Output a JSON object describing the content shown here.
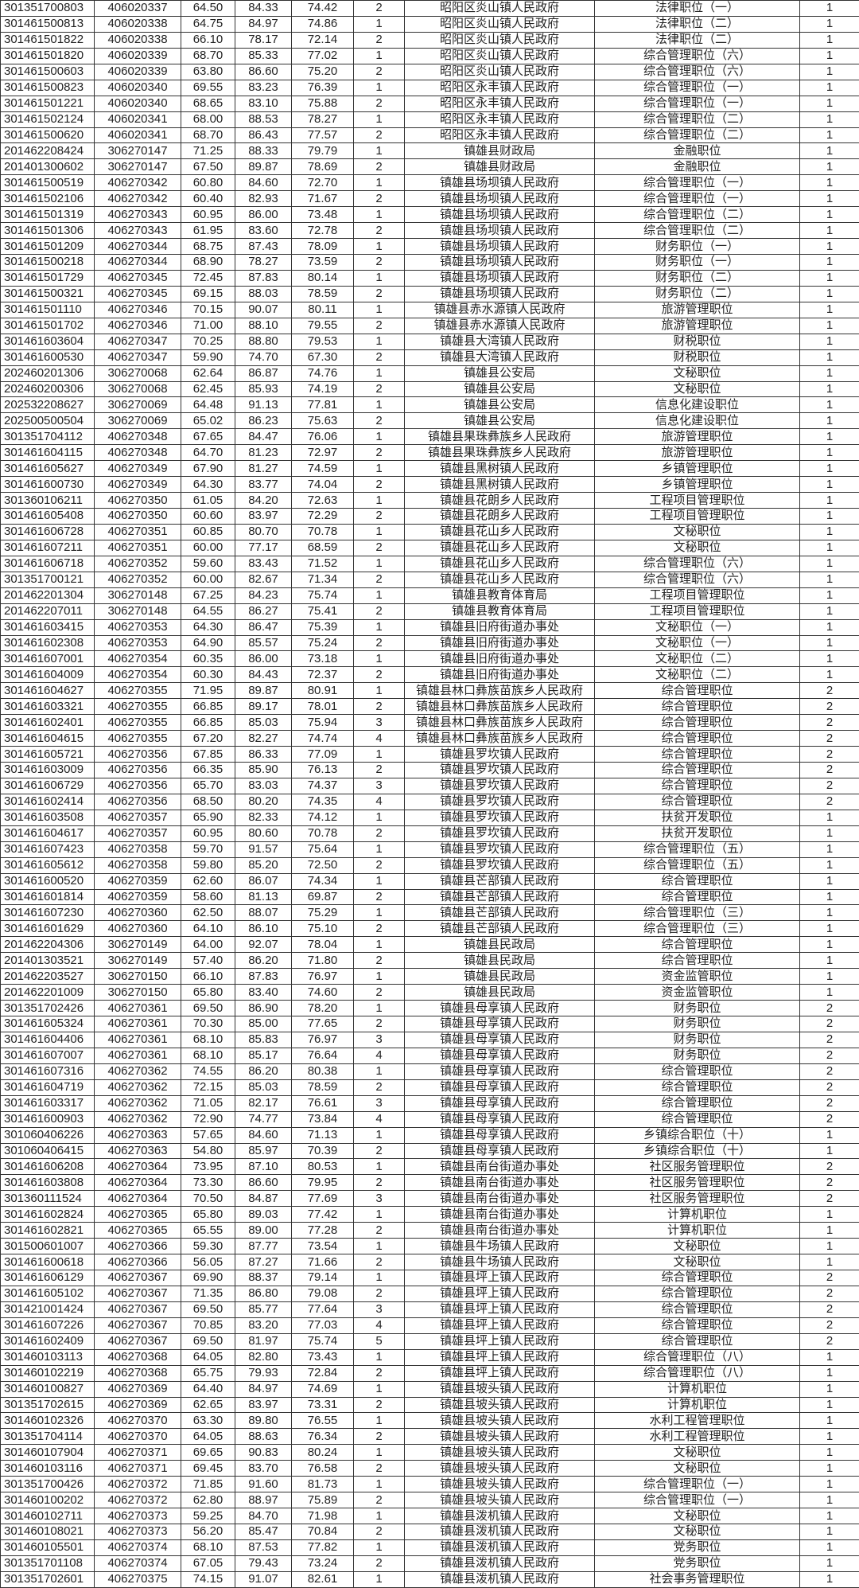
{
  "rows": [
    [
      "301351700803",
      "406020337",
      "64.50",
      "84.33",
      "74.42",
      "2",
      "昭阳区炎山镇人民政府",
      "法律职位（一）",
      "1"
    ],
    [
      "301461500813",
      "406020338",
      "64.75",
      "84.97",
      "74.86",
      "1",
      "昭阳区炎山镇人民政府",
      "法律职位（二）",
      "1"
    ],
    [
      "301461501822",
      "406020338",
      "66.10",
      "78.17",
      "72.14",
      "2",
      "昭阳区炎山镇人民政府",
      "法律职位（二）",
      "1"
    ],
    [
      "301461501820",
      "406020339",
      "68.70",
      "85.33",
      "77.02",
      "1",
      "昭阳区炎山镇人民政府",
      "综合管理职位（六）",
      "1"
    ],
    [
      "301461500603",
      "406020339",
      "63.80",
      "86.60",
      "75.20",
      "2",
      "昭阳区炎山镇人民政府",
      "综合管理职位（六）",
      "1"
    ],
    [
      "301461500823",
      "406020340",
      "69.55",
      "83.23",
      "76.39",
      "1",
      "昭阳区永丰镇人民政府",
      "综合管理职位（一）",
      "1"
    ],
    [
      "301461501221",
      "406020340",
      "68.65",
      "83.10",
      "75.88",
      "2",
      "昭阳区永丰镇人民政府",
      "综合管理职位（一）",
      "1"
    ],
    [
      "301461502124",
      "406020341",
      "68.00",
      "88.53",
      "78.27",
      "1",
      "昭阳区永丰镇人民政府",
      "综合管理职位（二）",
      "1"
    ],
    [
      "301461500620",
      "406020341",
      "68.70",
      "86.43",
      "77.57",
      "2",
      "昭阳区永丰镇人民政府",
      "综合管理职位（二）",
      "1"
    ],
    [
      "201462208424",
      "306270147",
      "71.25",
      "88.33",
      "79.79",
      "1",
      "镇雄县财政局",
      "金融职位",
      "1"
    ],
    [
      "201401300602",
      "306270147",
      "67.50",
      "89.87",
      "78.69",
      "2",
      "镇雄县财政局",
      "金融职位",
      "1"
    ],
    [
      "301461500519",
      "406270342",
      "60.80",
      "84.60",
      "72.70",
      "1",
      "镇雄县场坝镇人民政府",
      "综合管理职位（一）",
      "1"
    ],
    [
      "301461502106",
      "406270342",
      "60.40",
      "82.93",
      "71.67",
      "2",
      "镇雄县场坝镇人民政府",
      "综合管理职位（一）",
      "1"
    ],
    [
      "301461501319",
      "406270343",
      "60.95",
      "86.00",
      "73.48",
      "1",
      "镇雄县场坝镇人民政府",
      "综合管理职位（二）",
      "1"
    ],
    [
      "301461501306",
      "406270343",
      "61.95",
      "83.60",
      "72.78",
      "2",
      "镇雄县场坝镇人民政府",
      "综合管理职位（二）",
      "1"
    ],
    [
      "301461501209",
      "406270344",
      "68.75",
      "87.43",
      "78.09",
      "1",
      "镇雄县场坝镇人民政府",
      "财务职位（一）",
      "1"
    ],
    [
      "301461500218",
      "406270344",
      "68.90",
      "78.27",
      "73.59",
      "2",
      "镇雄县场坝镇人民政府",
      "财务职位（一）",
      "1"
    ],
    [
      "301461501729",
      "406270345",
      "72.45",
      "87.83",
      "80.14",
      "1",
      "镇雄县场坝镇人民政府",
      "财务职位（二）",
      "1"
    ],
    [
      "301461500321",
      "406270345",
      "69.15",
      "88.03",
      "78.59",
      "2",
      "镇雄县场坝镇人民政府",
      "财务职位（二）",
      "1"
    ],
    [
      "301461501110",
      "406270346",
      "70.15",
      "90.07",
      "80.11",
      "1",
      "镇雄县赤水源镇人民政府",
      "旅游管理职位",
      "1"
    ],
    [
      "301461501702",
      "406270346",
      "71.00",
      "88.10",
      "79.55",
      "2",
      "镇雄县赤水源镇人民政府",
      "旅游管理职位",
      "1"
    ],
    [
      "301461603604",
      "406270347",
      "70.25",
      "88.80",
      "79.53",
      "1",
      "镇雄县大湾镇人民政府",
      "财税职位",
      "1"
    ],
    [
      "301461600530",
      "406270347",
      "59.90",
      "74.70",
      "67.30",
      "2",
      "镇雄县大湾镇人民政府",
      "财税职位",
      "1"
    ],
    [
      "202460201306",
      "306270068",
      "62.64",
      "86.87",
      "74.76",
      "1",
      "镇雄县公安局",
      "文秘职位",
      "1"
    ],
    [
      "202460200306",
      "306270068",
      "62.45",
      "85.93",
      "74.19",
      "2",
      "镇雄县公安局",
      "文秘职位",
      "1"
    ],
    [
      "202532208627",
      "306270069",
      "64.48",
      "91.13",
      "77.81",
      "1",
      "镇雄县公安局",
      "信息化建设职位",
      "1"
    ],
    [
      "202500500504",
      "306270069",
      "65.02",
      "86.23",
      "75.63",
      "2",
      "镇雄县公安局",
      "信息化建设职位",
      "1"
    ],
    [
      "301351704112",
      "406270348",
      "67.65",
      "84.47",
      "76.06",
      "1",
      "镇雄县果珠彝族乡人民政府",
      "旅游管理职位",
      "1"
    ],
    [
      "301461604115",
      "406270348",
      "64.70",
      "81.23",
      "72.97",
      "2",
      "镇雄县果珠彝族乡人民政府",
      "旅游管理职位",
      "1"
    ],
    [
      "301461605627",
      "406270349",
      "67.90",
      "81.27",
      "74.59",
      "1",
      "镇雄县黑树镇人民政府",
      "乡镇管理职位",
      "1"
    ],
    [
      "301461600730",
      "406270349",
      "64.30",
      "83.77",
      "74.04",
      "2",
      "镇雄县黑树镇人民政府",
      "乡镇管理职位",
      "1"
    ],
    [
      "301360106211",
      "406270350",
      "61.05",
      "84.20",
      "72.63",
      "1",
      "镇雄县花朗乡人民政府",
      "工程项目管理职位",
      "1"
    ],
    [
      "301461605408",
      "406270350",
      "60.60",
      "83.97",
      "72.29",
      "2",
      "镇雄县花朗乡人民政府",
      "工程项目管理职位",
      "1"
    ],
    [
      "301461606728",
      "406270351",
      "60.85",
      "80.70",
      "70.78",
      "1",
      "镇雄县花山乡人民政府",
      "文秘职位",
      "1"
    ],
    [
      "301461607211",
      "406270351",
      "60.00",
      "77.17",
      "68.59",
      "2",
      "镇雄县花山乡人民政府",
      "文秘职位",
      "1"
    ],
    [
      "301461606718",
      "406270352",
      "59.60",
      "83.43",
      "71.52",
      "1",
      "镇雄县花山乡人民政府",
      "综合管理职位（六）",
      "1"
    ],
    [
      "301351700121",
      "406270352",
      "60.00",
      "82.67",
      "71.34",
      "2",
      "镇雄县花山乡人民政府",
      "综合管理职位（六）",
      "1"
    ],
    [
      "201462201304",
      "306270148",
      "67.25",
      "84.23",
      "75.74",
      "1",
      "镇雄县教育体育局",
      "工程项目管理职位",
      "1"
    ],
    [
      "201462207011",
      "306270148",
      "64.55",
      "86.27",
      "75.41",
      "2",
      "镇雄县教育体育局",
      "工程项目管理职位",
      "1"
    ],
    [
      "301461603415",
      "406270353",
      "64.30",
      "86.47",
      "75.39",
      "1",
      "镇雄县旧府街道办事处",
      "文秘职位（一）",
      "1"
    ],
    [
      "301461602308",
      "406270353",
      "64.90",
      "85.57",
      "75.24",
      "2",
      "镇雄县旧府街道办事处",
      "文秘职位（一）",
      "1"
    ],
    [
      "301461607001",
      "406270354",
      "60.35",
      "86.00",
      "73.18",
      "1",
      "镇雄县旧府街道办事处",
      "文秘职位（二）",
      "1"
    ],
    [
      "301461604009",
      "406270354",
      "60.30",
      "84.43",
      "72.37",
      "2",
      "镇雄县旧府街道办事处",
      "文秘职位（二）",
      "1"
    ],
    [
      "301461604627",
      "406270355",
      "71.95",
      "89.87",
      "80.91",
      "1",
      "镇雄县林口彝族苗族乡人民政府",
      "综合管理职位",
      "2"
    ],
    [
      "301461603321",
      "406270355",
      "66.85",
      "89.17",
      "78.01",
      "2",
      "镇雄县林口彝族苗族乡人民政府",
      "综合管理职位",
      "2"
    ],
    [
      "301461602401",
      "406270355",
      "66.85",
      "85.03",
      "75.94",
      "3",
      "镇雄县林口彝族苗族乡人民政府",
      "综合管理职位",
      "2"
    ],
    [
      "301461604615",
      "406270355",
      "67.20",
      "82.27",
      "74.74",
      "4",
      "镇雄县林口彝族苗族乡人民政府",
      "综合管理职位",
      "2"
    ],
    [
      "301461605721",
      "406270356",
      "67.85",
      "86.33",
      "77.09",
      "1",
      "镇雄县罗坎镇人民政府",
      "综合管理职位",
      "2"
    ],
    [
      "301461603009",
      "406270356",
      "66.35",
      "85.90",
      "76.13",
      "2",
      "镇雄县罗坎镇人民政府",
      "综合管理职位",
      "2"
    ],
    [
      "301461606729",
      "406270356",
      "65.70",
      "83.03",
      "74.37",
      "3",
      "镇雄县罗坎镇人民政府",
      "综合管理职位",
      "2"
    ],
    [
      "301461602414",
      "406270356",
      "68.50",
      "80.20",
      "74.35",
      "4",
      "镇雄县罗坎镇人民政府",
      "综合管理职位",
      "2"
    ],
    [
      "301461603508",
      "406270357",
      "65.90",
      "82.33",
      "74.12",
      "1",
      "镇雄县罗坎镇人民政府",
      "扶贫开发职位",
      "1"
    ],
    [
      "301461604617",
      "406270357",
      "60.95",
      "80.60",
      "70.78",
      "2",
      "镇雄县罗坎镇人民政府",
      "扶贫开发职位",
      "1"
    ],
    [
      "301461607423",
      "406270358",
      "59.70",
      "91.57",
      "75.64",
      "1",
      "镇雄县罗坎镇人民政府",
      "综合管理职位（五）",
      "1"
    ],
    [
      "301461605612",
      "406270358",
      "59.80",
      "85.20",
      "72.50",
      "2",
      "镇雄县罗坎镇人民政府",
      "综合管理职位（五）",
      "1"
    ],
    [
      "301461600520",
      "406270359",
      "62.60",
      "86.07",
      "74.34",
      "1",
      "镇雄县芒部镇人民政府",
      "综合管理职位",
      "1"
    ],
    [
      "301461601814",
      "406270359",
      "58.60",
      "81.13",
      "69.87",
      "2",
      "镇雄县芒部镇人民政府",
      "综合管理职位",
      "1"
    ],
    [
      "301461607230",
      "406270360",
      "62.50",
      "88.07",
      "75.29",
      "1",
      "镇雄县芒部镇人民政府",
      "综合管理职位（三）",
      "1"
    ],
    [
      "301461601629",
      "406270360",
      "64.10",
      "86.10",
      "75.10",
      "2",
      "镇雄县芒部镇人民政府",
      "综合管理职位（三）",
      "1"
    ],
    [
      "201462204306",
      "306270149",
      "64.00",
      "92.07",
      "78.04",
      "1",
      "镇雄县民政局",
      "综合管理职位",
      "1"
    ],
    [
      "201401303521",
      "306270149",
      "57.40",
      "86.20",
      "71.80",
      "2",
      "镇雄县民政局",
      "综合管理职位",
      "1"
    ],
    [
      "201462203527",
      "306270150",
      "66.10",
      "87.83",
      "76.97",
      "1",
      "镇雄县民政局",
      "资金监管职位",
      "1"
    ],
    [
      "201462201009",
      "306270150",
      "65.80",
      "83.40",
      "74.60",
      "2",
      "镇雄县民政局",
      "资金监管职位",
      "1"
    ],
    [
      "301351702426",
      "406270361",
      "69.50",
      "86.90",
      "78.20",
      "1",
      "镇雄县母享镇人民政府",
      "财务职位",
      "2"
    ],
    [
      "301461605324",
      "406270361",
      "70.30",
      "85.00",
      "77.65",
      "2",
      "镇雄县母享镇人民政府",
      "财务职位",
      "2"
    ],
    [
      "301461604406",
      "406270361",
      "68.10",
      "85.83",
      "76.97",
      "3",
      "镇雄县母享镇人民政府",
      "财务职位",
      "2"
    ],
    [
      "301461607007",
      "406270361",
      "68.10",
      "85.17",
      "76.64",
      "4",
      "镇雄县母享镇人民政府",
      "财务职位",
      "2"
    ],
    [
      "301461607316",
      "406270362",
      "74.55",
      "86.20",
      "80.38",
      "1",
      "镇雄县母享镇人民政府",
      "综合管理职位",
      "2"
    ],
    [
      "301461604719",
      "406270362",
      "72.15",
      "85.03",
      "78.59",
      "2",
      "镇雄县母享镇人民政府",
      "综合管理职位",
      "2"
    ],
    [
      "301461603317",
      "406270362",
      "71.05",
      "82.17",
      "76.61",
      "3",
      "镇雄县母享镇人民政府",
      "综合管理职位",
      "2"
    ],
    [
      "301461600903",
      "406270362",
      "72.90",
      "74.77",
      "73.84",
      "4",
      "镇雄县母享镇人民政府",
      "综合管理职位",
      "2"
    ],
    [
      "301060406226",
      "406270363",
      "57.65",
      "84.60",
      "71.13",
      "1",
      "镇雄县母享镇人民政府",
      "乡镇综合职位（十）",
      "1"
    ],
    [
      "301060406415",
      "406270363",
      "54.80",
      "85.97",
      "70.39",
      "2",
      "镇雄县母享镇人民政府",
      "乡镇综合职位（十）",
      "1"
    ],
    [
      "301461606208",
      "406270364",
      "73.95",
      "87.10",
      "80.53",
      "1",
      "镇雄县南台街道办事处",
      "社区服务管理职位",
      "2"
    ],
    [
      "301461603808",
      "406270364",
      "73.30",
      "86.60",
      "79.95",
      "2",
      "镇雄县南台街道办事处",
      "社区服务管理职位",
      "2"
    ],
    [
      "301360111524",
      "406270364",
      "70.50",
      "84.87",
      "77.69",
      "3",
      "镇雄县南台街道办事处",
      "社区服务管理职位",
      "2"
    ],
    [
      "301461602824",
      "406270365",
      "65.80",
      "89.03",
      "77.42",
      "1",
      "镇雄县南台街道办事处",
      "计算机职位",
      "1"
    ],
    [
      "301461602821",
      "406270365",
      "65.55",
      "89.00",
      "77.28",
      "2",
      "镇雄县南台街道办事处",
      "计算机职位",
      "1"
    ],
    [
      "301500601007",
      "406270366",
      "59.30",
      "87.77",
      "73.54",
      "1",
      "镇雄县牛场镇人民政府",
      "文秘职位",
      "1"
    ],
    [
      "301461600618",
      "406270366",
      "56.05",
      "87.27",
      "71.66",
      "2",
      "镇雄县牛场镇人民政府",
      "文秘职位",
      "1"
    ],
    [
      "301461606129",
      "406270367",
      "69.90",
      "88.37",
      "79.14",
      "1",
      "镇雄县坪上镇人民政府",
      "综合管理职位",
      "2"
    ],
    [
      "301461605102",
      "406270367",
      "71.35",
      "86.80",
      "79.08",
      "2",
      "镇雄县坪上镇人民政府",
      "综合管理职位",
      "2"
    ],
    [
      "301421001424",
      "406270367",
      "69.50",
      "85.77",
      "77.64",
      "3",
      "镇雄县坪上镇人民政府",
      "综合管理职位",
      "2"
    ],
    [
      "301461607226",
      "406270367",
      "70.85",
      "83.20",
      "77.03",
      "4",
      "镇雄县坪上镇人民政府",
      "综合管理职位",
      "2"
    ],
    [
      "301461602409",
      "406270367",
      "69.50",
      "81.97",
      "75.74",
      "5",
      "镇雄县坪上镇人民政府",
      "综合管理职位",
      "2"
    ],
    [
      "301460103113",
      "406270368",
      "64.05",
      "82.80",
      "73.43",
      "1",
      "镇雄县坪上镇人民政府",
      "综合管理职位（八）",
      "1"
    ],
    [
      "301460102219",
      "406270368",
      "65.75",
      "79.93",
      "72.84",
      "2",
      "镇雄县坪上镇人民政府",
      "综合管理职位（八）",
      "1"
    ],
    [
      "301460100827",
      "406270369",
      "64.40",
      "84.97",
      "74.69",
      "1",
      "镇雄县坡头镇人民政府",
      "计算机职位",
      "1"
    ],
    [
      "301351702615",
      "406270369",
      "62.65",
      "83.97",
      "73.31",
      "2",
      "镇雄县坡头镇人民政府",
      "计算机职位",
      "1"
    ],
    [
      "301460102326",
      "406270370",
      "63.30",
      "89.80",
      "76.55",
      "1",
      "镇雄县坡头镇人民政府",
      "水利工程管理职位",
      "1"
    ],
    [
      "301351704114",
      "406270370",
      "64.05",
      "88.63",
      "76.34",
      "2",
      "镇雄县坡头镇人民政府",
      "水利工程管理职位",
      "1"
    ],
    [
      "301460107904",
      "406270371",
      "69.65",
      "90.83",
      "80.24",
      "1",
      "镇雄县坡头镇人民政府",
      "文秘职位",
      "1"
    ],
    [
      "301460103116",
      "406270371",
      "69.45",
      "83.70",
      "76.58",
      "2",
      "镇雄县坡头镇人民政府",
      "文秘职位",
      "1"
    ],
    [
      "301351700426",
      "406270372",
      "71.85",
      "91.60",
      "81.73",
      "1",
      "镇雄县坡头镇人民政府",
      "综合管理职位（一）",
      "1"
    ],
    [
      "301460100202",
      "406270372",
      "62.80",
      "88.97",
      "75.89",
      "2",
      "镇雄县坡头镇人民政府",
      "综合管理职位（一）",
      "1"
    ],
    [
      "301460102711",
      "406270373",
      "59.25",
      "84.70",
      "71.98",
      "1",
      "镇雄县泼机镇人民政府",
      "文秘职位",
      "1"
    ],
    [
      "301460108021",
      "406270373",
      "56.20",
      "85.47",
      "70.84",
      "2",
      "镇雄县泼机镇人民政府",
      "文秘职位",
      "1"
    ],
    [
      "301460105501",
      "406270374",
      "68.10",
      "87.53",
      "77.82",
      "1",
      "镇雄县泼机镇人民政府",
      "党务职位",
      "1"
    ],
    [
      "301351701108",
      "406270374",
      "67.05",
      "79.43",
      "73.24",
      "2",
      "镇雄县泼机镇人民政府",
      "党务职位",
      "1"
    ],
    [
      "301351702601",
      "406270375",
      "74.15",
      "91.07",
      "82.61",
      "1",
      "镇雄县泼机镇人民政府",
      "社会事务管理职位",
      "1"
    ]
  ]
}
